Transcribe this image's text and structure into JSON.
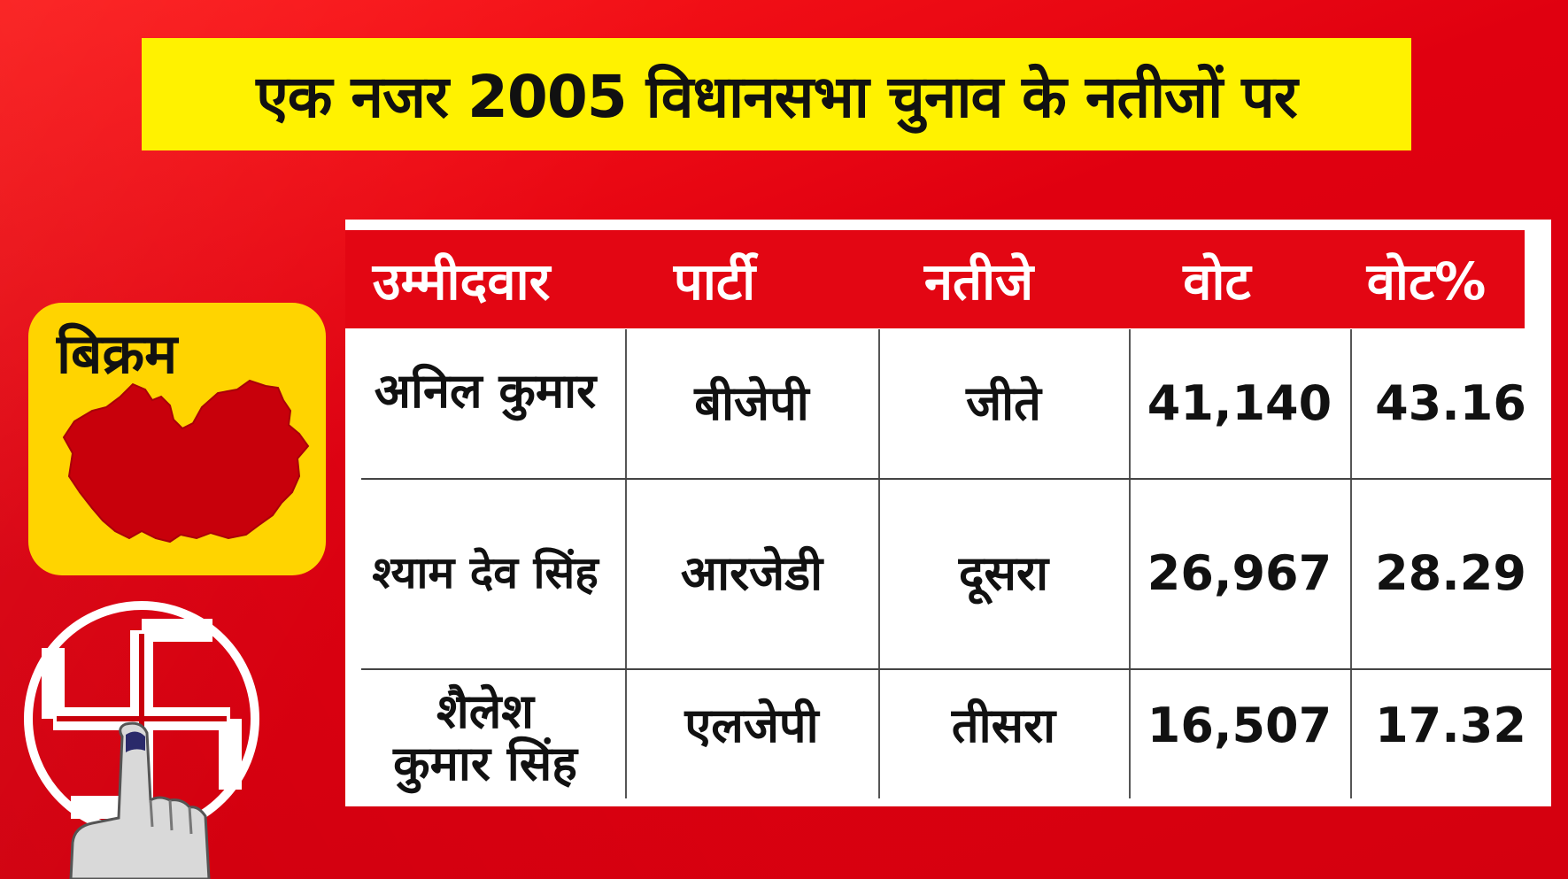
{
  "title": "एक नजर 2005 विधानसभा चुनाव के नतीजों पर",
  "seat": {
    "name": "बिक्रम"
  },
  "table": {
    "headers": [
      "उम्मीदवार",
      "पार्टी",
      "नतीजे",
      "वोट",
      "वोट%"
    ],
    "rows": [
      {
        "candidate": "अनिल कुमार",
        "party": "बीजेपी",
        "result": "जीते",
        "votes": "41,140",
        "vote_pct": "43.16"
      },
      {
        "candidate": "श्याम देव सिंह",
        "party": "आरजेडी",
        "result": "दूसरा",
        "votes": "26,967",
        "vote_pct": "28.29"
      },
      {
        "candidate_line1": "शैलेश",
        "candidate_line2": "कुमार सिंह",
        "party": "एलजेपी",
        "result": "तीसरा",
        "votes": "16,507",
        "vote_pct": "17.32"
      }
    ]
  },
  "colors": {
    "background": "#e30613",
    "title_band": "#fff200",
    "seat_card": "#ffd400",
    "map_fill": "#c8000b",
    "header_row": "#e30613"
  },
  "icons": {
    "map": "constituency-map-icon",
    "vote_symbol": "swastik-voting-symbol-icon",
    "inked_finger": "inked-finger-icon"
  }
}
